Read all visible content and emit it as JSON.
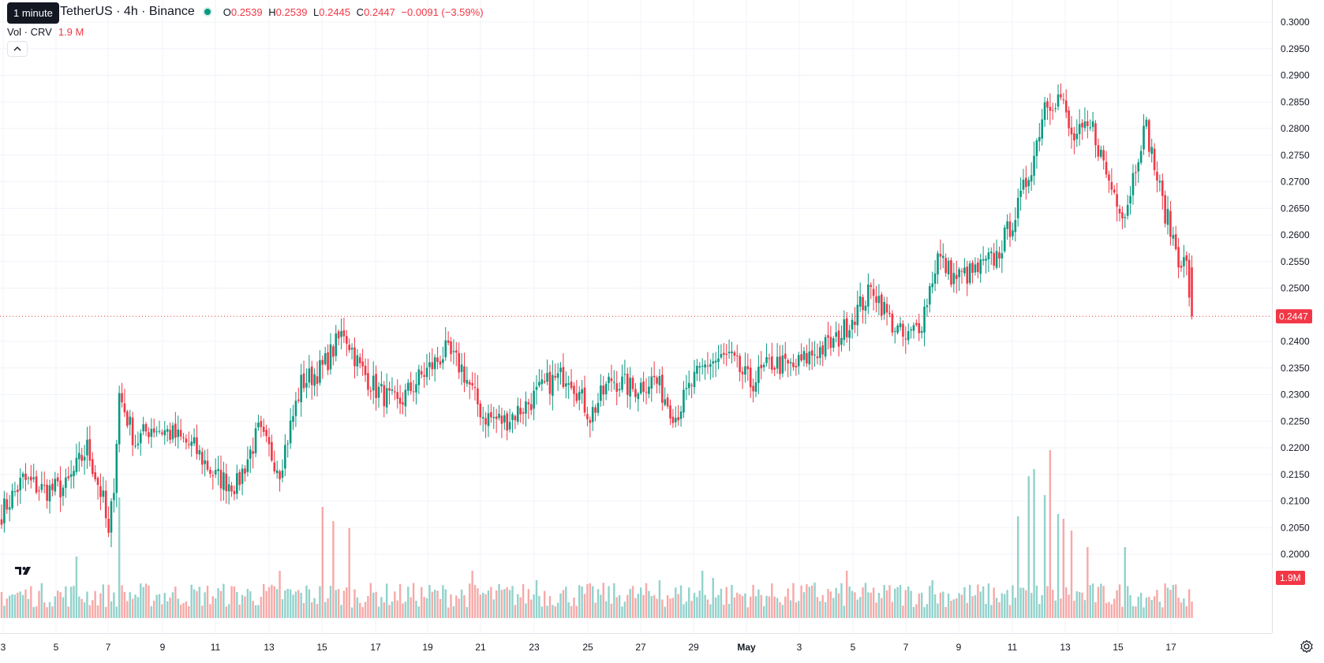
{
  "legend": {
    "tooltip": "1 minute",
    "title": "TetherUS · 4h · Binance",
    "o_label": "O",
    "o_value": "0.2539",
    "h_label": "H",
    "h_value": "0.2539",
    "l_label": "L",
    "l_value": "0.2445",
    "c_label": "C",
    "c_value": "0.2447",
    "change": "−0.0091 (−3.59%)",
    "volume_label": "Vol · CRV",
    "volume_value": "1.9 M",
    "collapse_icon": "chevron-up-icon"
  },
  "price_badge": "0.2447",
  "volume_badge": "1.9M",
  "colors": {
    "up": "#089981",
    "down": "#f23645",
    "up_vol": "#92d2cc",
    "down_vol": "#f7a9a7"
  },
  "chart_data": {
    "type": "candlestick",
    "symbol": "CRV/TetherUS",
    "interval": "4h",
    "ylim": [
      0.1985,
      0.3005
    ],
    "y_ticks": [
      "0.3000",
      "0.2950",
      "0.2900",
      "0.2850",
      "0.2800",
      "0.2750",
      "0.2700",
      "0.2650",
      "0.2600",
      "0.2550",
      "0.2500",
      "0.2400",
      "0.2350",
      "0.2300",
      "0.2250",
      "0.2200",
      "0.2150",
      "0.2100",
      "0.2050",
      "0.2000"
    ],
    "x_ticks": [
      "3",
      "5",
      "7",
      "9",
      "11",
      "13",
      "15",
      "17",
      "19",
      "21",
      "23",
      "25",
      "27",
      "29",
      "May",
      "3",
      "5",
      "7",
      "9",
      "11",
      "13",
      "15",
      "17"
    ],
    "current_price": 0.2447,
    "last_volume": "1.9M",
    "close_anchors": [
      [
        0,
        0.2078
      ],
      [
        8,
        0.214
      ],
      [
        16,
        0.212
      ],
      [
        24,
        0.2125
      ],
      [
        32,
        0.22
      ],
      [
        38,
        0.21
      ],
      [
        40,
        0.203
      ],
      [
        42,
        0.2135
      ],
      [
        44,
        0.23
      ],
      [
        50,
        0.221
      ],
      [
        56,
        0.224
      ],
      [
        62,
        0.223
      ],
      [
        72,
        0.22
      ],
      [
        80,
        0.2145
      ],
      [
        88,
        0.213
      ],
      [
        96,
        0.223
      ],
      [
        104,
        0.216
      ],
      [
        112,
        0.232
      ],
      [
        120,
        0.235
      ],
      [
        128,
        0.242
      ],
      [
        134,
        0.235
      ],
      [
        140,
        0.231
      ],
      [
        148,
        0.228
      ],
      [
        156,
        0.233
      ],
      [
        166,
        0.238
      ],
      [
        172,
        0.235
      ],
      [
        180,
        0.226
      ],
      [
        188,
        0.225
      ],
      [
        196,
        0.228
      ],
      [
        204,
        0.232
      ],
      [
        212,
        0.234
      ],
      [
        220,
        0.226
      ],
      [
        228,
        0.233
      ],
      [
        236,
        0.231
      ],
      [
        244,
        0.233
      ],
      [
        252,
        0.226
      ],
      [
        258,
        0.232
      ],
      [
        264,
        0.236
      ],
      [
        272,
        0.237
      ],
      [
        280,
        0.232
      ],
      [
        288,
        0.236
      ],
      [
        296,
        0.235
      ],
      [
        304,
        0.238
      ],
      [
        312,
        0.24
      ],
      [
        320,
        0.246
      ],
      [
        326,
        0.25
      ],
      [
        332,
        0.244
      ],
      [
        338,
        0.24
      ],
      [
        344,
        0.244
      ],
      [
        350,
        0.256
      ],
      [
        356,
        0.252
      ],
      [
        364,
        0.253
      ],
      [
        372,
        0.256
      ],
      [
        380,
        0.265
      ],
      [
        386,
        0.275
      ],
      [
        390,
        0.285
      ],
      [
        396,
        0.286
      ],
      [
        400,
        0.278
      ],
      [
        408,
        0.28
      ],
      [
        414,
        0.27
      ],
      [
        420,
        0.264
      ],
      [
        426,
        0.278
      ],
      [
        428,
        0.28
      ],
      [
        434,
        0.266
      ],
      [
        440,
        0.256
      ],
      [
        443,
        0.254
      ],
      [
        445,
        0.2447
      ]
    ],
    "volume_spikes": [
      [
        28,
        2.6
      ],
      [
        44,
        5.1
      ],
      [
        104,
        2.0
      ],
      [
        120,
        4.7
      ],
      [
        124,
        4.1
      ],
      [
        130,
        3.8
      ],
      [
        176,
        2.0
      ],
      [
        200,
        1.6
      ],
      [
        246,
        1.6
      ],
      [
        262,
        2.0
      ],
      [
        266,
        1.7
      ],
      [
        304,
        1.5
      ],
      [
        316,
        2.0
      ],
      [
        336,
        1.4
      ],
      [
        348,
        1.6
      ],
      [
        380,
        4.3
      ],
      [
        384,
        6.0
      ],
      [
        386,
        6.3
      ],
      [
        390,
        5.2
      ],
      [
        392,
        7.1
      ],
      [
        395,
        4.4
      ],
      [
        397,
        4.2
      ],
      [
        400,
        3.7
      ],
      [
        406,
        3.0
      ],
      [
        420,
        3.0
      ],
      [
        438,
        1.4
      ]
    ]
  }
}
